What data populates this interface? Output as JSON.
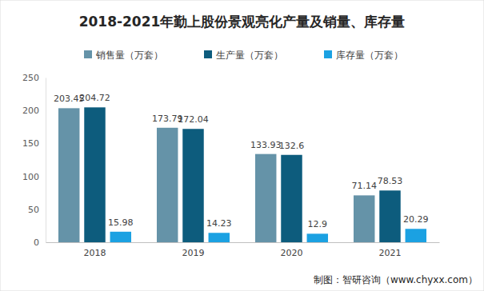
{
  "chart_data": {
    "type": "bar",
    "title": "2018-2021年勤上股份景观亮化产量及销量、库存量",
    "categories": [
      "2018",
      "2019",
      "2020",
      "2021"
    ],
    "series": [
      {
        "name": "销售量（万套）",
        "color": "#6593a8",
        "values": [
          203.45,
          173.79,
          133.93,
          71.14
        ]
      },
      {
        "name": "生产量（万套）",
        "color": "#0d5c7d",
        "values": [
          204.72,
          172.04,
          132.6,
          78.53
        ]
      },
      {
        "name": "库存量（万套）",
        "color": "#1ba1e2",
        "values": [
          15.98,
          14.23,
          12.9,
          20.29
        ]
      }
    ],
    "ylim": [
      0,
      250
    ],
    "yticks": [
      0,
      50,
      100,
      150,
      200,
      250
    ],
    "grid": false,
    "legend": "top",
    "data_labels": true,
    "annotations": [
      "制图：智研咨询（www.chyxx.com）"
    ]
  }
}
